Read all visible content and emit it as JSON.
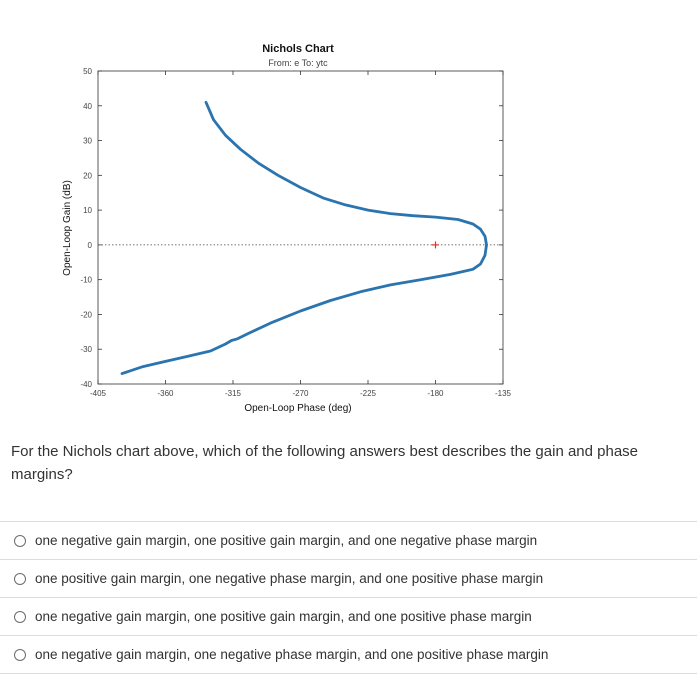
{
  "chart_data": {
    "type": "line",
    "title": "Nichols Chart",
    "subtitle": "From: e  To: ytc",
    "xlabel": "Open-Loop Phase (deg)",
    "ylabel": "Open-Loop Gain (dB)",
    "xlim": [
      -405,
      -135
    ],
    "ylim": [
      -40,
      50
    ],
    "xticks": [
      -405,
      -360,
      -315,
      -270,
      -225,
      -180,
      -135
    ],
    "yticks": [
      -40,
      -30,
      -20,
      -10,
      0,
      10,
      20,
      30,
      40,
      50
    ],
    "grid": false,
    "series": [
      {
        "x": [
          -333,
          -328,
          -320,
          -310,
          -298,
          -285,
          -270,
          -255,
          -240,
          -225,
          -210,
          -195,
          -180,
          -165,
          -155,
          -150,
          -147,
          -146,
          -147,
          -150,
          -155,
          -170,
          -190,
          -210,
          -230,
          -250,
          -270,
          -290,
          -305,
          -312,
          -316,
          -320,
          -325,
          -330,
          -345,
          -360,
          -375,
          -389
        ],
        "y": [
          41,
          36,
          31.5,
          27.5,
          23.5,
          20,
          16.5,
          13.5,
          11.5,
          10,
          9,
          8.4,
          8,
          7.3,
          6,
          4.5,
          2.5,
          0,
          -3,
          -5.5,
          -7,
          -8.5,
          -10,
          -11.5,
          -13.5,
          -16,
          -19,
          -22.5,
          -25.5,
          -27,
          -27.5,
          -28.5,
          -29.5,
          -30.5,
          -32,
          -33.5,
          -35,
          -37
        ]
      }
    ],
    "reference_line": {
      "y": 0,
      "style": "dotted"
    },
    "critical_point": {
      "x": -180,
      "y": 0,
      "marker": "+",
      "color": "#e03030"
    },
    "line_color": "#2a74b0"
  },
  "question": "For the Nichols chart above, which of the following answers best describes the gain and phase margins?",
  "options": [
    "one negative gain margin, one positive gain margin, and one negative phase margin",
    "one positive gain margin, one negative phase margin, and one positive phase margin",
    "one negative gain margin, one positive gain margin, and one positive phase margin",
    "one negative gain margin, one negative phase margin, and one positive phase margin"
  ]
}
